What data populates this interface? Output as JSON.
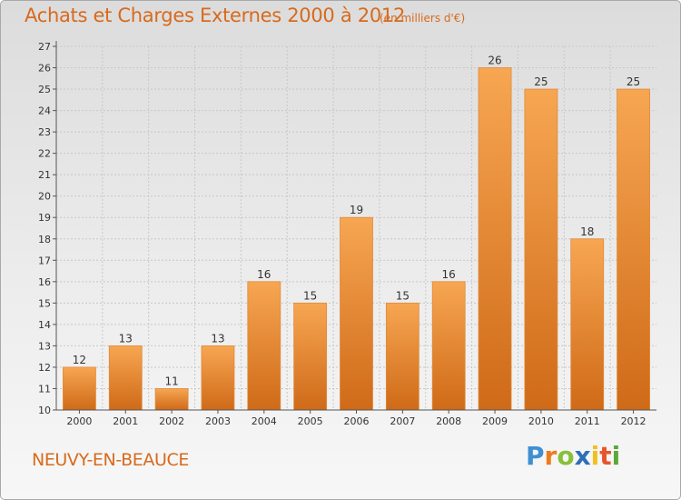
{
  "header": {
    "title": "Achats et Charges Externes 2000 à 2012",
    "unit": "(en milliers d'€)"
  },
  "footer": {
    "town": "NEUVY-EN-BEAUCE",
    "logo_letters": [
      "P",
      "r",
      "o",
      "x",
      "i",
      "t",
      "i"
    ],
    "logo_colors": [
      "#3f8fd2",
      "#f07a1a",
      "#88c03a",
      "#2c6fb6",
      "#f0c020",
      "#e8542a",
      "#5aa83a"
    ]
  },
  "colors": {
    "bar_light": "#f7a652",
    "bar_dark": "#cf6a18",
    "accent": "#d86a1c",
    "axis": "#555555",
    "grid": "#c8c8c8"
  },
  "chart_data": {
    "type": "bar",
    "title": "Achats et Charges Externes 2000 à 2012",
    "subtitle": "(en milliers d'€)",
    "xlabel": "",
    "ylabel": "",
    "categories": [
      "2000",
      "2001",
      "2002",
      "2003",
      "2004",
      "2005",
      "2006",
      "2007",
      "2008",
      "2009",
      "2010",
      "2011",
      "2012"
    ],
    "values": [
      12,
      13,
      11,
      13,
      16,
      15,
      19,
      15,
      16,
      26,
      25,
      18,
      25
    ],
    "ylim": [
      10,
      27
    ],
    "yticks": [
      10,
      11,
      12,
      13,
      14,
      15,
      16,
      17,
      18,
      19,
      20,
      21,
      22,
      23,
      24,
      25,
      26,
      27
    ],
    "grid": true,
    "data_labels": true
  }
}
